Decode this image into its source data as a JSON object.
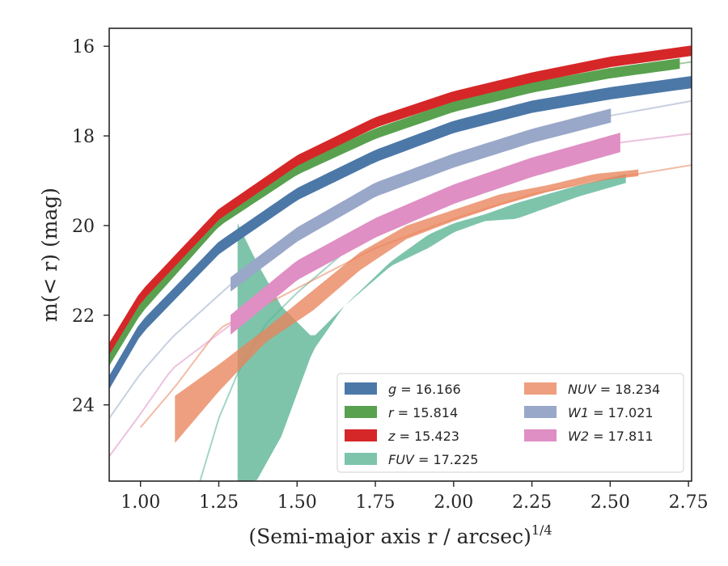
{
  "chart_data": {
    "type": "line",
    "xlabel": "(Semi-major axis r / arcsec)",
    "xlabel_sup": "1/4",
    "ylabel": "m(< r) (mag)",
    "xlim": [
      0.9,
      2.76
    ],
    "ylim": [
      25.7,
      15.6
    ],
    "y_inverted": true,
    "grid": false,
    "legend_position": "lower-right",
    "x_ticks": [
      1.0,
      1.25,
      1.5,
      1.75,
      2.0,
      2.25,
      2.5,
      2.75
    ],
    "x_tick_labels": [
      "1.00",
      "1.25",
      "1.50",
      "1.75",
      "2.00",
      "2.25",
      "2.50",
      "2.75"
    ],
    "y_ticks": [
      16,
      18,
      20,
      22,
      24
    ],
    "y_tick_labels": [
      "16",
      "18",
      "20",
      "22",
      "24"
    ],
    "series": [
      {
        "name": "g = 16.166",
        "label_sym": "g",
        "label_val": "16.166",
        "color": "#4c78a8",
        "x": [
          0.9,
          1.0,
          1.25,
          1.5,
          1.75,
          2.0,
          2.25,
          2.5,
          2.76
        ],
        "y": [
          23.5,
          22.3,
          20.5,
          19.3,
          18.45,
          17.8,
          17.35,
          17.05,
          16.8
        ],
        "band": 0.12,
        "solid_to": 2.76
      },
      {
        "name": "r = 15.814",
        "label_sym": "r",
        "label_val": "15.814",
        "color": "#59a14f",
        "x": [
          0.9,
          1.0,
          1.25,
          1.5,
          1.75,
          2.0,
          2.25,
          2.5,
          2.76
        ],
        "y": [
          23.0,
          21.85,
          19.9,
          18.75,
          17.95,
          17.35,
          16.92,
          16.6,
          16.35
        ],
        "band": 0.1,
        "solid_to": 2.72
      },
      {
        "name": "z = 15.423",
        "label_sym": "z",
        "label_val": "15.423",
        "color": "#d62728",
        "x": [
          0.9,
          1.0,
          1.25,
          1.5,
          1.75,
          2.0,
          2.25,
          2.5,
          2.76
        ],
        "y": [
          22.75,
          21.6,
          19.75,
          18.55,
          17.7,
          17.12,
          16.7,
          16.35,
          16.1
        ],
        "band": 0.1,
        "solid_to": 2.76
      },
      {
        "name": "FUV = 17.225",
        "label_sym": "FUV",
        "label_val": "17.225",
        "color": "#59b393",
        "x": [
          1.31,
          1.37,
          1.45,
          1.55,
          1.65,
          1.8,
          1.92,
          2.0,
          2.1,
          2.2,
          2.3,
          2.4,
          2.55
        ],
        "y_upper": [
          19.95,
          20.8,
          21.8,
          22.5,
          21.8,
          20.8,
          20.2,
          19.95,
          19.75,
          19.5,
          19.3,
          19.1,
          18.85
        ],
        "y_lower": [
          25.7,
          25.7,
          24.7,
          22.8,
          21.8,
          20.9,
          20.5,
          20.15,
          19.9,
          19.85,
          19.6,
          19.35,
          19.05
        ],
        "faint_x": [
          1.19,
          1.25,
          1.31,
          1.4,
          1.5,
          1.65
        ],
        "faint_y": [
          25.7,
          24.3,
          23.3,
          22.2,
          21.5,
          20.6
        ]
      },
      {
        "name": "NUV = 18.234",
        "label_sym": "NUV",
        "label_val": "18.234",
        "color": "#e9845b",
        "x": [
          1.11,
          1.25,
          1.4,
          1.55,
          1.7,
          1.85,
          2.0,
          2.15,
          2.3,
          2.45,
          2.59
        ],
        "y_upper": [
          23.8,
          23.1,
          22.3,
          21.45,
          20.6,
          20.0,
          19.65,
          19.3,
          19.1,
          18.85,
          18.75
        ],
        "y_lower": [
          24.85,
          23.7,
          22.6,
          21.9,
          21.0,
          20.3,
          19.9,
          19.55,
          19.25,
          19.0,
          18.9
        ],
        "faint_x": [
          1.0,
          1.11,
          1.25,
          1.5,
          1.75,
          2.0,
          2.25,
          2.5,
          2.76
        ],
        "faint_y": [
          24.5,
          23.6,
          22.3,
          21.4,
          20.5,
          19.85,
          19.3,
          18.95,
          18.65
        ]
      },
      {
        "name": "W1 = 17.021",
        "label_sym": "W1",
        "label_val": "17.021",
        "color": "#99a7c9",
        "x": [
          0.9,
          1.0,
          1.1,
          1.29,
          1.5,
          1.75,
          2.0,
          2.25,
          2.5,
          2.76
        ],
        "y": [
          24.3,
          23.3,
          22.5,
          21.3,
          20.2,
          19.2,
          18.55,
          18.0,
          17.55,
          17.22
        ],
        "band": 0.14,
        "solid_from": 1.29,
        "solid_to": 2.5
      },
      {
        "name": "W2 = 17.811",
        "label_sym": "W2",
        "label_val": "17.811",
        "color": "#df8fc4",
        "x": [
          0.9,
          1.0,
          1.1,
          1.29,
          1.5,
          1.75,
          2.0,
          2.25,
          2.53,
          2.76
        ],
        "y": [
          25.15,
          24.2,
          23.2,
          22.2,
          21.0,
          20.05,
          19.3,
          18.7,
          18.15,
          17.95
        ],
        "band": 0.2,
        "solid_from": 1.29,
        "solid_to": 2.53
      }
    ]
  }
}
